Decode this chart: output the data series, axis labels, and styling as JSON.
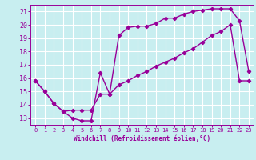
{
  "xlabel": "Windchill (Refroidissement éolien,°C)",
  "bg_color": "#c8eef0",
  "line_color": "#990099",
  "grid_color": "#ffffff",
  "xlim": [
    -0.5,
    23.5
  ],
  "ylim": [
    12.5,
    21.5
  ],
  "xticks": [
    0,
    1,
    2,
    3,
    4,
    5,
    6,
    7,
    8,
    9,
    10,
    11,
    12,
    13,
    14,
    15,
    16,
    17,
    18,
    19,
    20,
    21,
    22,
    23
  ],
  "yticks": [
    13,
    14,
    15,
    16,
    17,
    18,
    19,
    20,
    21
  ],
  "curve1_x": [
    0,
    1,
    2,
    3,
    4,
    5,
    6,
    7,
    8,
    9,
    10,
    11,
    12,
    13,
    14,
    15,
    16,
    17,
    18,
    19,
    20,
    21,
    22,
    23
  ],
  "curve1_y": [
    15.8,
    15.0,
    14.1,
    13.5,
    13.0,
    12.8,
    12.8,
    16.4,
    14.8,
    19.2,
    19.8,
    19.9,
    19.9,
    20.1,
    20.5,
    20.5,
    20.8,
    21.0,
    21.1,
    21.2,
    21.2,
    21.2,
    20.3,
    16.5
  ],
  "curve2_x": [
    0,
    1,
    2,
    3,
    4,
    5,
    6,
    7,
    8,
    9,
    10,
    11,
    12,
    13,
    14,
    15,
    16,
    17,
    18,
    19,
    20,
    21,
    22,
    23
  ],
  "curve2_y": [
    15.8,
    15.0,
    14.1,
    13.5,
    13.6,
    13.6,
    13.6,
    14.8,
    14.8,
    15.5,
    15.8,
    16.2,
    16.5,
    16.9,
    17.2,
    17.5,
    17.9,
    18.2,
    18.7,
    19.2,
    19.5,
    20.0,
    15.8,
    15.8
  ]
}
